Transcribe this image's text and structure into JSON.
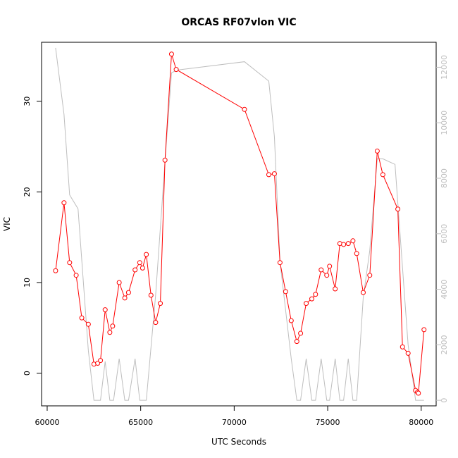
{
  "chart_data": {
    "type": "line",
    "title": "ORCAS RF07vlon VIC",
    "xlabel": "UTC Seconds",
    "ylabel": "VIC",
    "xlim": [
      59700,
      80800
    ],
    "ylim": [
      -3.6,
      36.5
    ],
    "y2lim": [
      -200,
      12900
    ],
    "x_ticks": [
      60000,
      65000,
      70000,
      75000,
      80000
    ],
    "y_ticks": [
      0,
      10,
      20,
      30
    ],
    "y2_ticks": [
      0,
      2000,
      4000,
      6000,
      8000,
      10000,
      12000
    ],
    "series": [
      {
        "axis": "left",
        "color": "#ff0000",
        "marker": "open-circle",
        "x": [
          60450,
          60900,
          61200,
          61550,
          61850,
          62200,
          62500,
          62700,
          62850,
          63100,
          63350,
          63500,
          63850,
          64150,
          64350,
          64700,
          64950,
          65100,
          65300,
          65550,
          65800,
          66050,
          66300,
          66650,
          66900,
          70550,
          71850,
          72150,
          72450,
          72750,
          73050,
          73350,
          73550,
          73850,
          74150,
          74350,
          74650,
          74950,
          75100,
          75400,
          75650,
          75850,
          76100,
          76350,
          76550,
          76900,
          77250,
          77650,
          77950,
          78750,
          79000,
          79300,
          79700,
          79800,
          79850,
          80150
        ],
        "y": [
          11.3,
          18.8,
          12.2,
          10.8,
          6.1,
          5.4,
          1.0,
          1.1,
          1.4,
          7.0,
          4.5,
          5.2,
          10.0,
          8.3,
          8.9,
          11.4,
          12.2,
          11.6,
          13.1,
          8.6,
          5.6,
          7.7,
          23.5,
          35.2,
          33.5,
          29.1,
          21.9,
          22.0,
          12.2,
          9.0,
          5.8,
          3.5,
          4.4,
          7.7,
          8.2,
          8.7,
          11.4,
          10.8,
          11.8,
          9.3,
          14.3,
          14.2,
          14.3,
          14.6,
          13.2,
          8.9,
          10.8,
          24.5,
          21.9,
          18.1,
          2.9,
          2.2,
          -1.9,
          -2.1,
          -2.2,
          4.8
        ]
      },
      {
        "axis": "right",
        "color": "#bebebe",
        "marker": "none",
        "x": [
          60450,
          60900,
          61200,
          61650,
          62200,
          62500,
          62850,
          63100,
          63350,
          63550,
          63850,
          64150,
          64350,
          64700,
          64950,
          65300,
          65800,
          66300,
          66650,
          66950,
          70550,
          71850,
          72150,
          72450,
          73050,
          73350,
          73550,
          73850,
          74150,
          74350,
          74650,
          74950,
          75100,
          75400,
          75650,
          75850,
          76100,
          76350,
          76550,
          76900,
          77250,
          77650,
          77950,
          78600,
          79300,
          79700,
          79900,
          80150
        ],
        "y": [
          12700,
          10300,
          7400,
          6900,
          1800,
          0,
          0,
          1400,
          0,
          0,
          1500,
          0,
          0,
          1500,
          0,
          0,
          3800,
          8600,
          11800,
          11900,
          12200,
          11500,
          9500,
          5000,
          1500,
          0,
          0,
          1500,
          0,
          0,
          1500,
          0,
          0,
          1500,
          0,
          0,
          1500,
          0,
          0,
          3700,
          5400,
          8700,
          8700,
          8500,
          2000,
          0,
          0,
          0
        ]
      }
    ]
  }
}
